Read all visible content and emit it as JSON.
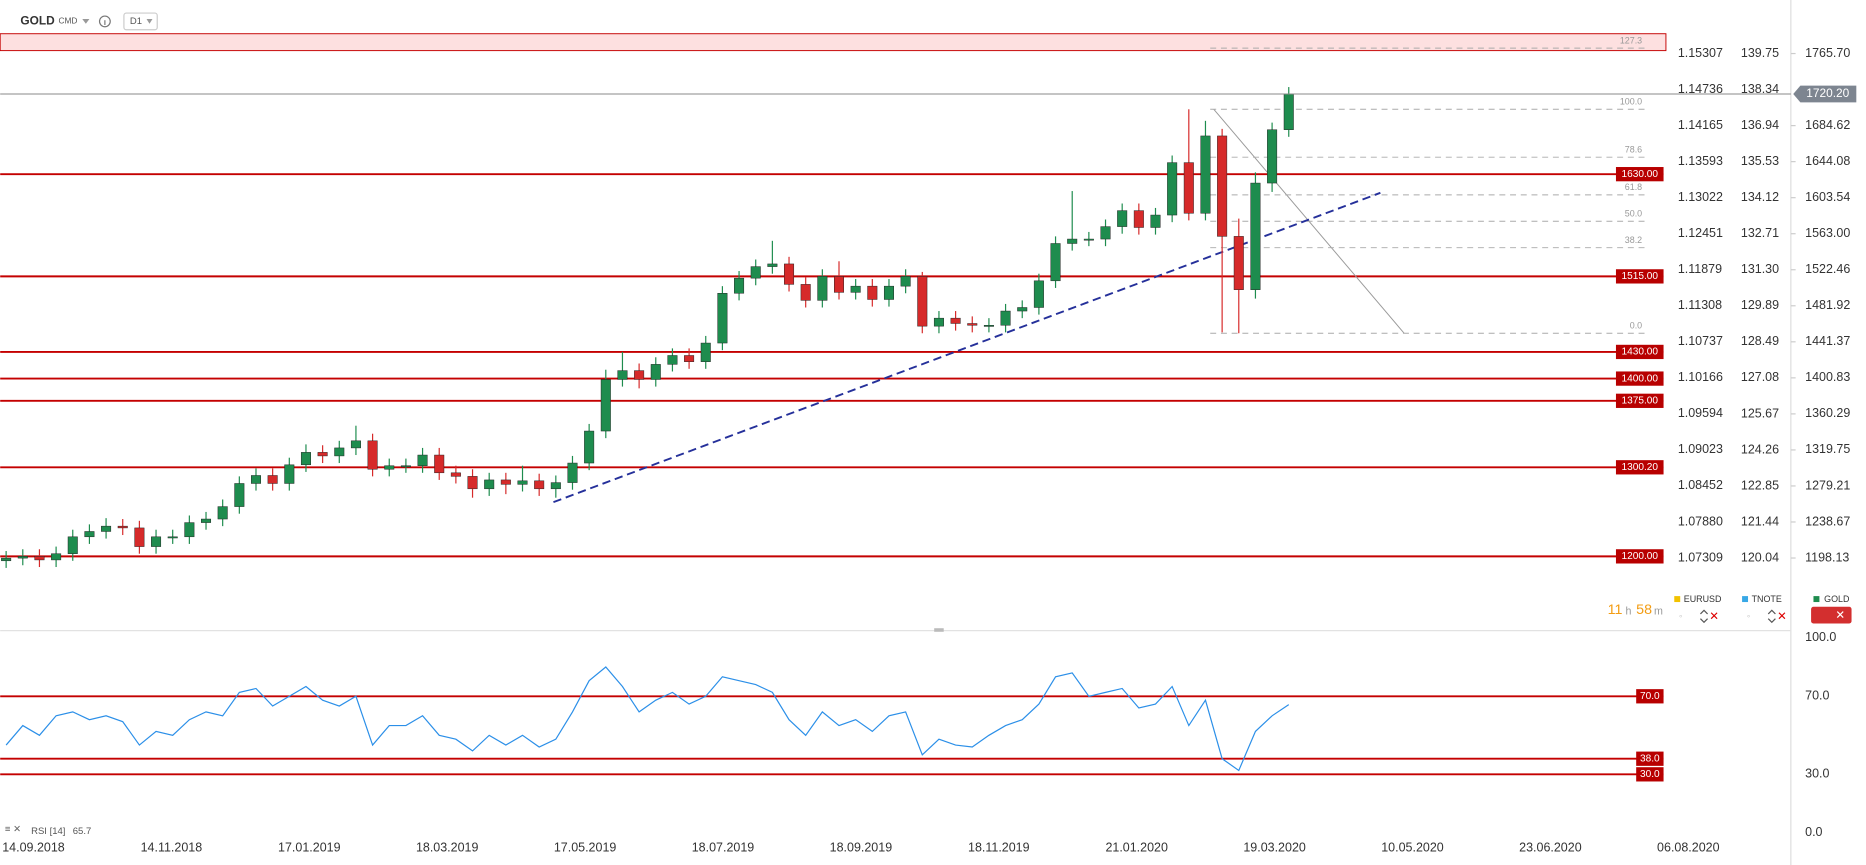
{
  "header": {
    "symbol": "GOLD",
    "market": "CMD",
    "interval": "D1"
  },
  "countdown": {
    "hours": "11",
    "hours_unit": "h",
    "minutes": "58",
    "minutes_unit": "m"
  },
  "chart_data": [
    {
      "type": "candlestick",
      "symbol": "GOLD",
      "up_color": "#1e8c4e",
      "down_color": "#d62a2a",
      "open": [
        1195,
        1198,
        1200,
        1196,
        1203,
        1222,
        1228,
        1234,
        1232,
        1211,
        1222,
        1222,
        1238,
        1242,
        1256,
        1282,
        1291,
        1282,
        1303,
        1317,
        1313,
        1322,
        1330,
        1298,
        1302,
        1302,
        1314,
        1294,
        1290,
        1276,
        1286,
        1281,
        1285,
        1276,
        1283,
        1305,
        1341,
        1399,
        1409,
        1399,
        1416,
        1426,
        1419,
        1440,
        1496,
        1513,
        1526,
        1529,
        1506,
        1488,
        1515,
        1497,
        1504,
        1489,
        1504,
        1515,
        1459,
        1468,
        1462,
        1460,
        1460,
        1476,
        1480,
        1510,
        1552,
        1557,
        1557,
        1571,
        1589,
        1570,
        1584,
        1643,
        1586,
        1673,
        1560,
        1500,
        1620,
        1680
      ],
      "high": [
        1206,
        1208,
        1208,
        1211,
        1230,
        1236,
        1243,
        1242,
        1240,
        1230,
        1230,
        1246,
        1250,
        1264,
        1290,
        1299,
        1299,
        1311,
        1326,
        1325,
        1330,
        1347,
        1338,
        1310,
        1310,
        1322,
        1322,
        1302,
        1298,
        1294,
        1294,
        1302,
        1293,
        1291,
        1313,
        1349,
        1410,
        1430,
        1417,
        1424,
        1434,
        1434,
        1448,
        1504,
        1521,
        1534,
        1555,
        1537,
        1514,
        1523,
        1532,
        1512,
        1512,
        1512,
        1523,
        1520,
        1476,
        1476,
        1470,
        1468,
        1484,
        1488,
        1518,
        1560,
        1611,
        1565,
        1579,
        1597,
        1597,
        1592,
        1651,
        1703,
        1690,
        1681,
        1580,
        1632,
        1688,
        1728
      ],
      "low": [
        1187,
        1190,
        1188,
        1188,
        1195,
        1214,
        1220,
        1224,
        1203,
        1203,
        1214,
        1214,
        1230,
        1234,
        1248,
        1274,
        1274,
        1274,
        1295,
        1305,
        1305,
        1314,
        1290,
        1290,
        1294,
        1294,
        1286,
        1282,
        1266,
        1268,
        1270,
        1273,
        1268,
        1266,
        1275,
        1297,
        1333,
        1391,
        1389,
        1391,
        1408,
        1411,
        1411,
        1432,
        1488,
        1505,
        1518,
        1498,
        1480,
        1480,
        1489,
        1489,
        1481,
        1481,
        1496,
        1451,
        1451,
        1454,
        1452,
        1452,
        1452,
        1468,
        1472,
        1502,
        1544,
        1549,
        1549,
        1563,
        1562,
        1562,
        1576,
        1578,
        1578,
        1452,
        1451,
        1490,
        1610,
        1672
      ],
      "close": [
        1198,
        1200,
        1196,
        1203,
        1222,
        1228,
        1234,
        1232,
        1211,
        1222,
        1222,
        1238,
        1242,
        1256,
        1282,
        1291,
        1282,
        1303,
        1317,
        1313,
        1322,
        1330,
        1298,
        1302,
        1302,
        1314,
        1294,
        1290,
        1276,
        1286,
        1281,
        1285,
        1276,
        1283,
        1305,
        1341,
        1399,
        1409,
        1399,
        1416,
        1426,
        1419,
        1440,
        1496,
        1513,
        1526,
        1529,
        1506,
        1488,
        1515,
        1497,
        1504,
        1489,
        1504,
        1515,
        1459,
        1468,
        1462,
        1460,
        1460,
        1476,
        1480,
        1510,
        1552,
        1557,
        1557,
        1571,
        1589,
        1570,
        1584,
        1643,
        1586,
        1673,
        1560,
        1500,
        1620,
        1680,
        1720
      ],
      "ylim": [
        1119.15,
        1788.46
      ],
      "yticks": [
        {
          "value": 1765.7,
          "label": "1765.70"
        },
        1684.62,
        1644.08,
        1603.54,
        {
          "value": 1563,
          "label": "1563.00"
        },
        1522.46,
        1481.92,
        1441.37,
        1400.83,
        1360.29,
        1319.75,
        1279.21,
        1238.67,
        1198.13
      ],
      "axes": [
        {
          "name": "EURUSD",
          "color": "#f2c200",
          "ylim": [
            1.06196,
            1.15628
          ],
          "ticks": [
            1.15307,
            1.14736,
            1.14165,
            1.13593,
            1.13022,
            1.12451,
            1.11879,
            1.11308,
            1.10737,
            1.10166,
            1.09594,
            1.09023,
            1.08452,
            {
              "value": 1.0788,
              "label": "1.07880"
            },
            1.07309
          ]
        },
        {
          "name": "TNOTE",
          "color": "#38a8e6",
          "ylim": [
            117.3,
            140.54
          ],
          "ticks": [
            139.75,
            138.34,
            136.94,
            135.53,
            134.12,
            132.71,
            {
              "value": 131.3,
              "label": "131.30"
            },
            129.89,
            128.49,
            127.08,
            125.67,
            124.26,
            122.85,
            121.44,
            120.04
          ]
        }
      ],
      "last_price": {
        "value": 1720.2,
        "label": "1720.20"
      },
      "levels": [
        {
          "value": 1630,
          "label": "1630.00"
        },
        {
          "value": 1515,
          "label": "1515.00"
        },
        {
          "value": 1430,
          "label": "1430.00"
        },
        {
          "value": 1400,
          "label": "1400.00"
        },
        {
          "value": 1375,
          "label": "1375.00"
        },
        {
          "value": 1300.2,
          "label": "1300.20"
        },
        {
          "value": 1200,
          "label": "1200.00"
        }
      ],
      "level_color": "#c40000",
      "zone": [
        1769,
        1788
      ],
      "fibonacci": {
        "low": 1451,
        "high": 1703,
        "levels": [
          {
            "value": 127.3,
            "label": "127.3"
          },
          {
            "value": 100,
            "label": "100.0"
          },
          {
            "value": 78.6,
            "label": "78.6"
          },
          {
            "value": 61.8,
            "label": "61.8"
          },
          {
            "value": 50,
            "label": "50.0"
          },
          {
            "value": 38.2,
            "label": "38.2"
          },
          {
            "value": 0,
            "label": "0.0"
          }
        ]
      },
      "trendline": {
        "values": [
          1261,
          1609
        ],
        "color": "#25309a"
      }
    },
    {
      "type": "line",
      "indicator": "RSI [14]",
      "color": "#2b8fe8",
      "values": [
        45,
        55,
        50,
        60,
        62,
        58,
        60,
        57,
        45,
        52,
        50,
        58,
        62,
        60,
        72,
        74,
        65,
        70,
        75,
        68,
        65,
        70,
        45,
        55,
        55,
        60,
        50,
        48,
        42,
        50,
        45,
        50,
        44,
        48,
        62,
        78,
        85,
        75,
        62,
        68,
        72,
        66,
        70,
        80,
        78,
        76,
        72,
        58,
        50,
        62,
        55,
        58,
        52,
        60,
        62,
        40,
        48,
        45,
        44,
        50,
        55,
        58,
        66,
        80,
        82,
        70,
        72,
        74,
        64,
        66,
        75,
        55,
        68,
        38,
        32,
        52,
        60,
        65.7
      ],
      "ylim": [
        0,
        100
      ],
      "yticks": [
        {
          "value": 100,
          "label": "100.0"
        },
        {
          "value": 70,
          "label": "70.0"
        },
        {
          "value": 30,
          "label": "30.0"
        },
        {
          "value": 0,
          "label": "0.0"
        }
      ],
      "levels": [
        {
          "value": 70,
          "label": "70.0"
        },
        {
          "value": 38,
          "label": "38.0"
        },
        {
          "value": 30,
          "label": "30.0"
        }
      ],
      "xtick_labels": [
        "14.09.2018",
        "14.11.2018",
        "17.01.2019",
        "18.03.2019",
        "17.05.2019",
        "18.07.2019",
        "18.09.2019",
        "18.11.2019",
        "21.01.2020",
        "19.03.2020",
        "10.05.2020",
        "23.06.2020",
        "06.08.2020"
      ]
    }
  ]
}
